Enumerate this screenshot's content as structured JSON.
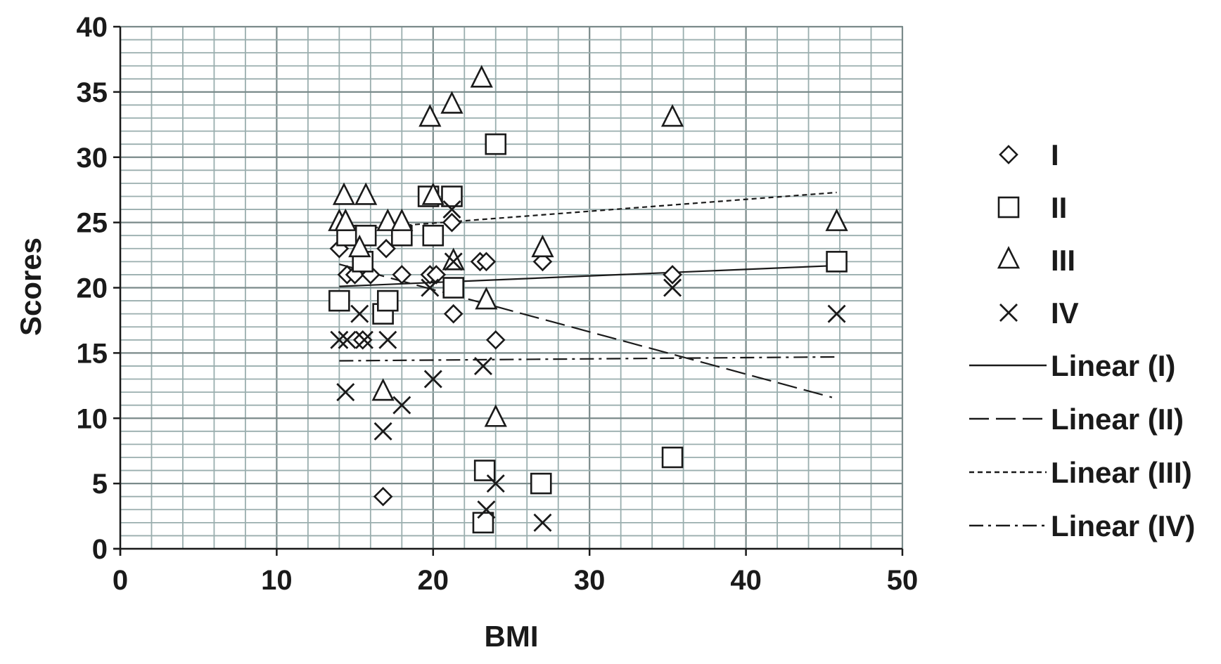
{
  "chart_data": {
    "type": "scatter",
    "title": "",
    "xlabel": "BMI",
    "ylabel": "Scores",
    "xlim": [
      0,
      50
    ],
    "ylim": [
      0,
      40
    ],
    "x_major_step": 10,
    "x_minor_step": 2,
    "y_major_step": 5,
    "y_minor_step": 1,
    "x_ticks": [
      "0",
      "10",
      "20",
      "30",
      "40",
      "50"
    ],
    "y_ticks": [
      "0",
      "5",
      "10",
      "15",
      "20",
      "25",
      "30",
      "35",
      "40"
    ],
    "grid": true,
    "legend_position": "right",
    "colors": {
      "ink": "#1a1a1a",
      "minor_grid": "#9aaeae",
      "major_grid": "#7a8a8a"
    },
    "series": [
      {
        "name": "I",
        "marker": "diamond",
        "points": [
          [
            14,
            23
          ],
          [
            14.5,
            21
          ],
          [
            15,
            21
          ],
          [
            15.5,
            16
          ],
          [
            16,
            21
          ],
          [
            17,
            23
          ],
          [
            16.8,
            4
          ],
          [
            18,
            21
          ],
          [
            19.8,
            21
          ],
          [
            20.2,
            21
          ],
          [
            21.2,
            25
          ],
          [
            21.3,
            18
          ],
          [
            23,
            22
          ],
          [
            23.4,
            22
          ],
          [
            24,
            16
          ],
          [
            27,
            22
          ],
          [
            35.3,
            21
          ]
        ]
      },
      {
        "name": "II",
        "marker": "square",
        "points": [
          [
            14,
            19
          ],
          [
            14.5,
            24
          ],
          [
            15.5,
            22
          ],
          [
            15.7,
            24
          ],
          [
            16.8,
            18
          ],
          [
            17.1,
            19
          ],
          [
            18,
            24
          ],
          [
            19.7,
            27
          ],
          [
            20,
            24
          ],
          [
            21.2,
            27
          ],
          [
            21.3,
            20
          ],
          [
            23.2,
            2
          ],
          [
            23.3,
            6
          ],
          [
            24,
            31
          ],
          [
            26.9,
            5
          ],
          [
            35.3,
            7
          ],
          [
            45.8,
            22
          ]
        ]
      },
      {
        "name": "III",
        "marker": "triangle",
        "points": [
          [
            14,
            25
          ],
          [
            14.3,
            27
          ],
          [
            14.4,
            25
          ],
          [
            15.3,
            23
          ],
          [
            15.7,
            27
          ],
          [
            16.8,
            12
          ],
          [
            17.1,
            25
          ],
          [
            18,
            25
          ],
          [
            19.8,
            33
          ],
          [
            20,
            27
          ],
          [
            21.2,
            34
          ],
          [
            21.3,
            22
          ],
          [
            23.1,
            36
          ],
          [
            23.4,
            19
          ],
          [
            24,
            10
          ],
          [
            27,
            23
          ],
          [
            35.3,
            33
          ],
          [
            45.8,
            25
          ]
        ]
      },
      {
        "name": "IV",
        "marker": "cross",
        "points": [
          [
            14,
            16
          ],
          [
            14.4,
            12
          ],
          [
            14.5,
            16
          ],
          [
            15.3,
            18
          ],
          [
            15.6,
            16
          ],
          [
            16.8,
            9
          ],
          [
            17.1,
            16
          ],
          [
            18,
            11
          ],
          [
            19.8,
            20
          ],
          [
            20,
            13
          ],
          [
            21.2,
            26
          ],
          [
            21.3,
            22
          ],
          [
            23.2,
            14
          ],
          [
            23.4,
            3
          ],
          [
            24,
            5
          ],
          [
            27,
            2
          ],
          [
            35.3,
            20
          ],
          [
            45.8,
            18
          ]
        ]
      }
    ],
    "trendlines": [
      {
        "name": "Linear (I)",
        "dash": "solid",
        "x": [
          14,
          45.8
        ],
        "y": [
          20.1,
          21.7
        ]
      },
      {
        "name": "Linear (II)",
        "dash": "long-dash",
        "x": [
          14,
          45.5
        ],
        "y": [
          21.8,
          11.6
        ]
      },
      {
        "name": "Linear (III)",
        "dash": "short-dash",
        "x": [
          14,
          45.8
        ],
        "y": [
          24.4,
          27.3
        ]
      },
      {
        "name": "Linear (IV)",
        "dash": "dash-dot",
        "x": [
          14,
          45.8
        ],
        "y": [
          14.4,
          14.7
        ]
      }
    ],
    "legend": [
      {
        "label": "I",
        "kind": "marker",
        "marker": "diamond"
      },
      {
        "label": "II",
        "kind": "marker",
        "marker": "square"
      },
      {
        "label": "III",
        "kind": "marker",
        "marker": "triangle"
      },
      {
        "label": "IV",
        "kind": "marker",
        "marker": "cross"
      },
      {
        "label": "Linear (I)",
        "kind": "line",
        "dash": "solid"
      },
      {
        "label": "Linear (II)",
        "kind": "line",
        "dash": "long-dash"
      },
      {
        "label": "Linear (III)",
        "kind": "line",
        "dash": "short-dash"
      },
      {
        "label": "Linear (IV)",
        "kind": "line",
        "dash": "dash-dot"
      }
    ]
  }
}
